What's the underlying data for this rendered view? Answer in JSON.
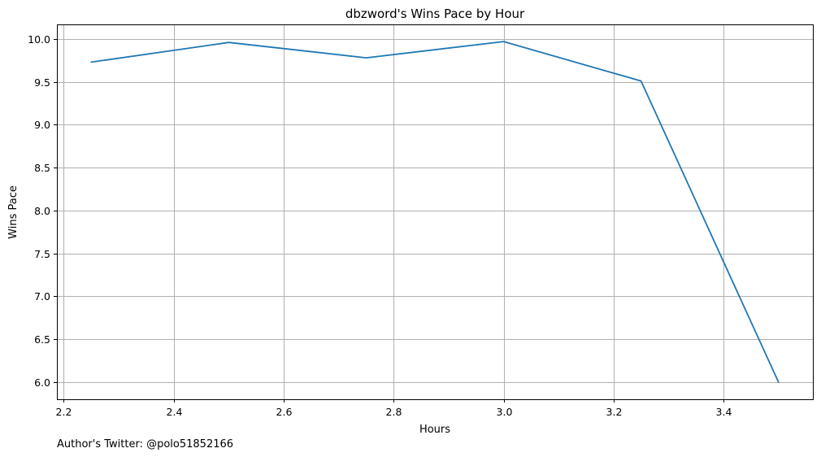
{
  "chart_data": {
    "type": "line",
    "title": "dbzword's Wins Pace by Hour",
    "xlabel": "Hours",
    "ylabel": "Wins Pace",
    "footnote": "Author's Twitter: @polo51852166",
    "xlim": [
      2.1875,
      3.5625
    ],
    "ylim": [
      5.8,
      10.17
    ],
    "xticks": [
      2.2,
      2.4,
      2.6,
      2.8,
      3.0,
      3.2,
      3.4
    ],
    "xtick_labels": [
      "2.2",
      "2.4",
      "2.6",
      "2.8",
      "3.0",
      "3.2",
      "3.4"
    ],
    "yticks": [
      6.0,
      6.5,
      7.0,
      7.5,
      8.0,
      8.5,
      9.0,
      9.5,
      10.0
    ],
    "ytick_labels": [
      "6.0",
      "6.5",
      "7.0",
      "7.5",
      "8.0",
      "8.5",
      "9.0",
      "9.5",
      "10.0"
    ],
    "grid": true,
    "series": [
      {
        "color": "#1f77b4",
        "x": [
          2.25,
          2.5,
          2.75,
          3.0,
          3.25,
          3.5
        ],
        "y": [
          9.73,
          9.96,
          9.78,
          9.97,
          9.51,
          6.0
        ]
      }
    ]
  }
}
